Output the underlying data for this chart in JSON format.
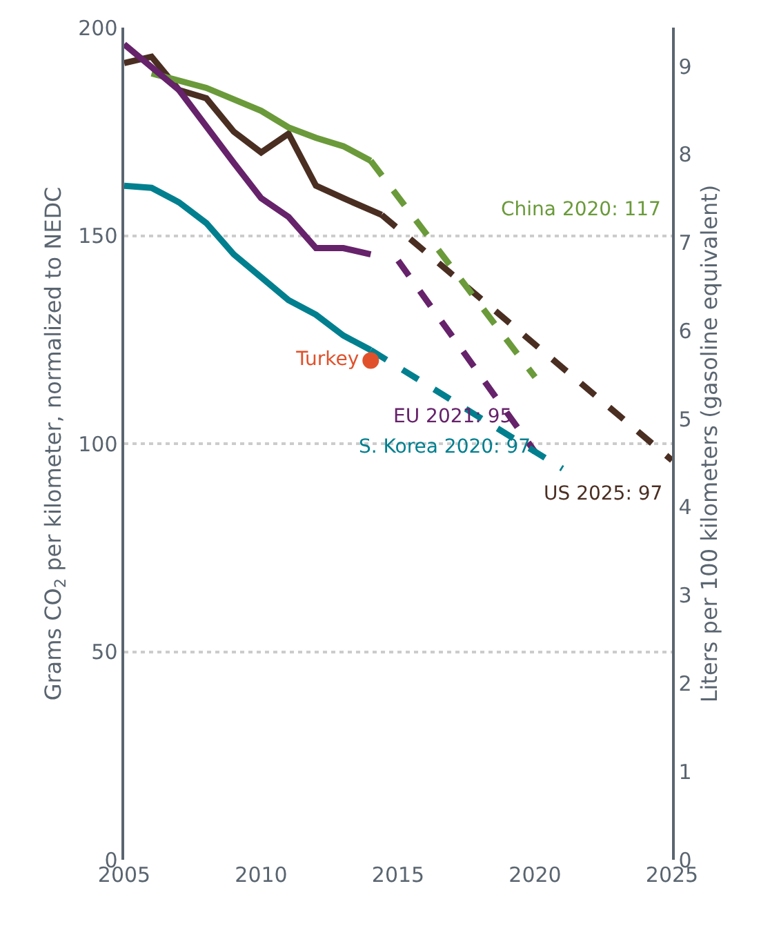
{
  "chart_data": {
    "type": "line",
    "ylabel": "Grams CO$_{2}$ per kilometer, normalized to NEDC",
    "y2label": "Liters per 100 kilometers (gasoline equivalent)",
    "xlim": [
      2005,
      2025
    ],
    "xticks": [
      2005,
      2010,
      2015,
      2020,
      2025
    ],
    "ylim": [
      0,
      200
    ],
    "yticks": [
      0,
      50,
      100,
      150,
      200
    ],
    "y2lim": [
      0,
      9.44
    ],
    "y2ticks": [
      0,
      1,
      2,
      3,
      4,
      5,
      6,
      7,
      8,
      9
    ],
    "grid": "y",
    "series": [
      {
        "color": "#4a2e22",
        "line_style": "solid",
        "x": [
          2005,
          2006,
          2007,
          2008,
          2009,
          2010,
          2011,
          2012,
          2013,
          2014.4
        ],
        "values": [
          191.5,
          193,
          185,
          183,
          175,
          170,
          174.5,
          162,
          159,
          155
        ]
      },
      {
        "color": "#4a2e22",
        "line_style": "dashed",
        "x": [
          2014.4,
          2025
        ],
        "values": [
          155,
          96
        ]
      },
      {
        "color": "#6a9a3a",
        "line_style": "solid",
        "x": [
          2006,
          2008,
          2010,
          2011,
          2012,
          2013,
          2014
        ],
        "values": [
          189,
          185.5,
          180,
          176,
          173.5,
          171.5,
          168
        ]
      },
      {
        "color": "#6a9a3a",
        "line_style": "dashed",
        "x": [
          2014,
          2020
        ],
        "values": [
          168,
          116
        ]
      },
      {
        "color": "#66226a",
        "line_style": "solid",
        "x": [
          2005,
          2007,
          2009,
          2010,
          2011,
          2012,
          2013,
          2014
        ],
        "values": [
          196,
          185,
          167.5,
          159,
          154.5,
          147,
          147,
          145.5
        ]
      },
      {
        "color": "#66226a",
        "line_style": "dashed",
        "x": [
          2015,
          2020
        ],
        "values": [
          144,
          98
        ]
      },
      {
        "color": "#007f8f",
        "line_style": "solid",
        "x": [
          2005,
          2006,
          2007,
          2008,
          2009,
          2010,
          2011,
          2012,
          2013,
          2014
        ],
        "values": [
          162,
          161.5,
          158,
          153,
          145.5,
          140,
          134.5,
          131,
          126,
          122.5
        ]
      },
      {
        "color": "#007f8f",
        "line_style": "dashed",
        "x": [
          2014,
          2021
        ],
        "values": [
          122.5,
          94
        ]
      },
      {
        "type": "scatter",
        "name": "Turkey",
        "color": "#e0512b",
        "marker": "circle",
        "x": [
          2014
        ],
        "values": [
          120
        ]
      }
    ],
    "annotations": [
      "China 2020: 117",
      {
        "text": "EU 2021: 95",
        "x": 2020,
        "y": 98
      },
      {
        "text": "S. Korea 2020: 97",
        "x": 2021,
        "y": 94
      },
      {
        "text": "US 2025: 97",
        "x": 2025,
        "y": 96
      }
    ]
  }
}
